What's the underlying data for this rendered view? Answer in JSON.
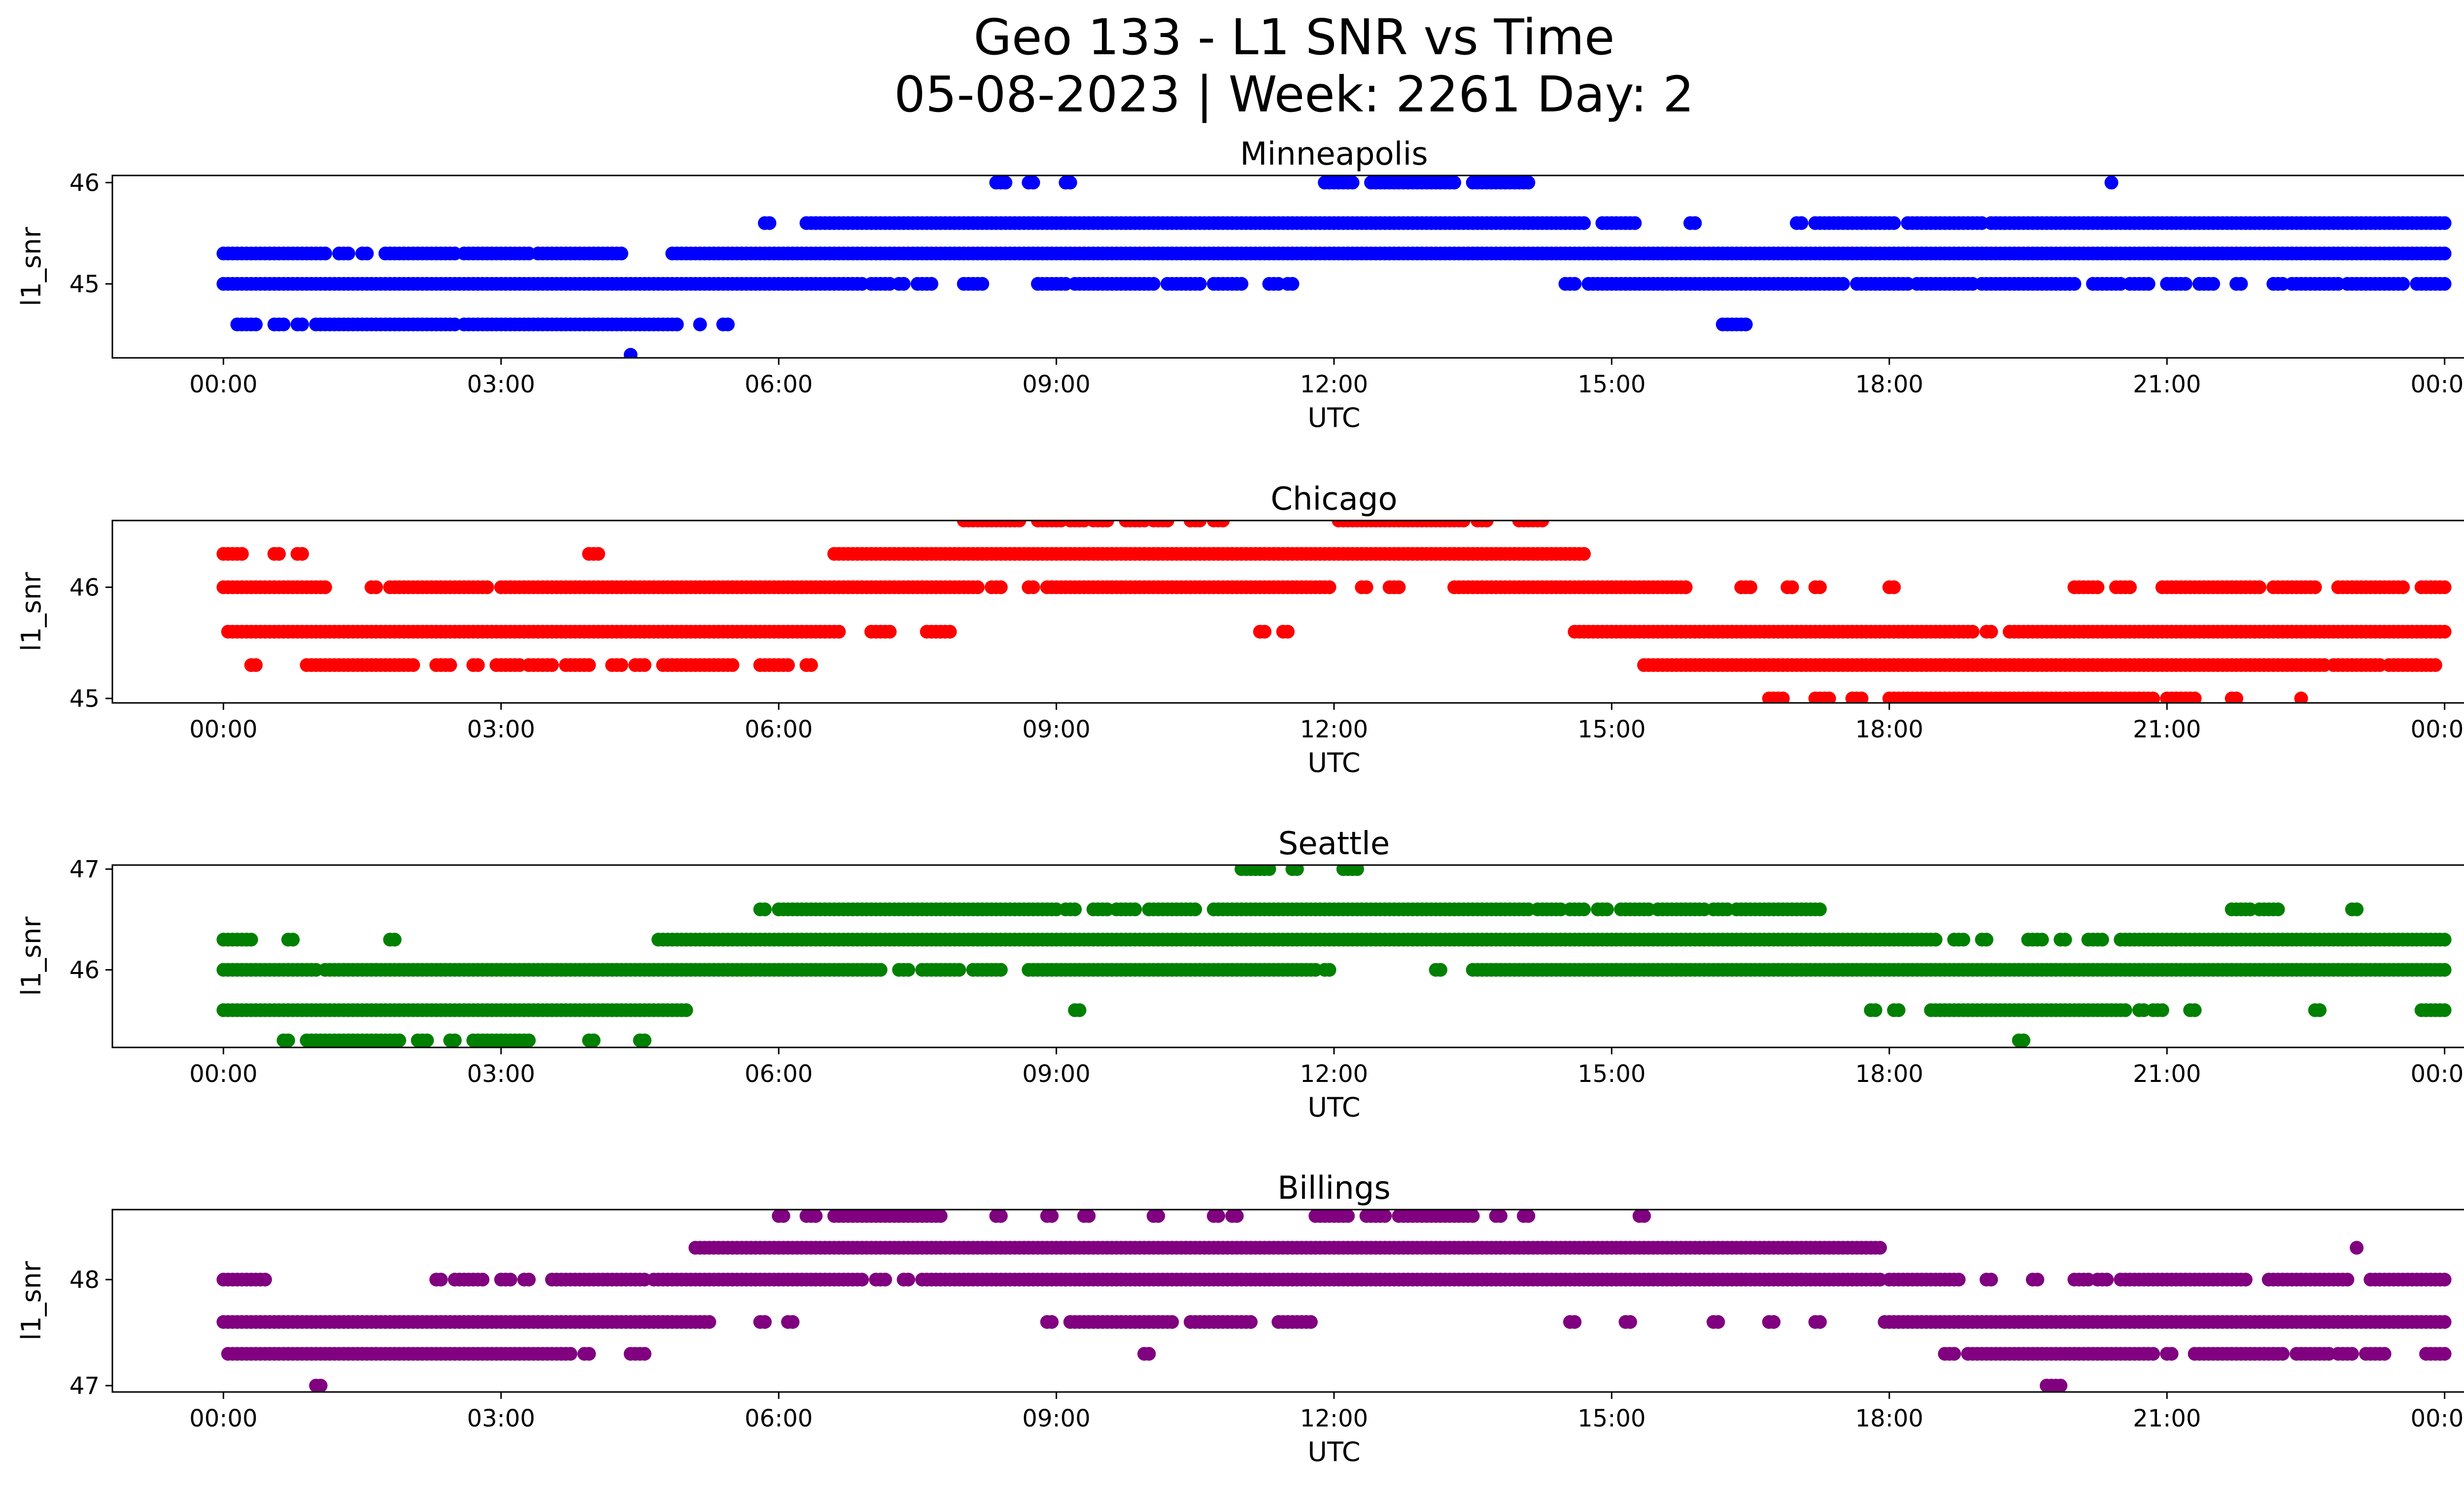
{
  "title_line1": "Geo 133 - L1 SNR vs Time",
  "title_line2": "05-08-2023 | Week: 2261 Day: 2",
  "chart_data": [
    {
      "type": "scatter",
      "title": "Minneapolis",
      "xlabel": "UTC",
      "ylabel": "l1_snr",
      "color": "#0000ff",
      "xlim_hours": [
        -1.2,
        25.2
      ],
      "ylim": [
        44.27,
        46.07
      ],
      "xticks": [
        "00:00",
        "03:00",
        "06:00",
        "09:00",
        "12:00",
        "15:00",
        "18:00",
        "21:00",
        "00:00"
      ],
      "yticks": [
        45,
        46
      ],
      "levels": [
        45.0,
        45.6,
        46.0,
        45.3,
        44.6,
        44.3
      ],
      "segments": [
        [
          46.0,
          8.35,
          8.45
        ],
        [
          46.0,
          8.7,
          8.75
        ],
        [
          46.0,
          9.1,
          9.15
        ],
        [
          46.0,
          11.9,
          12.2
        ],
        [
          46.0,
          12.4,
          13.3
        ],
        [
          46.0,
          13.5,
          14.1
        ],
        [
          46.0,
          20.4,
          20.4
        ],
        [
          45.6,
          5.85,
          5.9
        ],
        [
          45.6,
          6.3,
          14.7
        ],
        [
          45.6,
          14.9,
          15.25
        ],
        [
          45.6,
          15.85,
          15.9
        ],
        [
          45.6,
          17.0,
          17.05
        ],
        [
          45.6,
          17.2,
          18.05
        ],
        [
          45.6,
          18.2,
          19.0
        ],
        [
          45.6,
          19.1,
          24.0
        ],
        [
          45.3,
          0.0,
          0.55
        ],
        [
          45.3,
          0.6,
          0.8
        ],
        [
          45.3,
          0.85,
          0.95
        ],
        [
          45.3,
          1.0,
          1.1
        ],
        [
          45.3,
          1.25,
          1.35
        ],
        [
          45.3,
          1.5,
          1.55
        ],
        [
          45.3,
          1.75,
          2.5
        ],
        [
          45.3,
          2.6,
          3.3
        ],
        [
          45.3,
          3.4,
          4.3
        ],
        [
          45.3,
          4.85,
          24.0
        ],
        [
          45.0,
          0.0,
          6.9
        ],
        [
          45.0,
          7.0,
          7.2
        ],
        [
          45.0,
          7.3,
          7.35
        ],
        [
          45.0,
          7.5,
          7.65
        ],
        [
          45.0,
          8.0,
          8.2
        ],
        [
          45.0,
          8.8,
          9.1
        ],
        [
          45.0,
          9.2,
          9.5
        ],
        [
          45.0,
          9.55,
          10.05
        ],
        [
          45.0,
          10.2,
          10.55
        ],
        [
          45.0,
          10.7,
          11.0
        ],
        [
          45.0,
          11.3,
          11.4
        ],
        [
          45.0,
          11.5,
          11.55
        ],
        [
          45.0,
          14.5,
          14.6
        ],
        [
          45.0,
          14.75,
          17.5
        ],
        [
          45.0,
          17.65,
          18.2
        ],
        [
          45.0,
          18.3,
          18.9
        ],
        [
          45.0,
          19.0,
          19.5
        ],
        [
          45.0,
          19.55,
          20.0
        ],
        [
          45.0,
          20.2,
          20.5
        ],
        [
          45.0,
          20.6,
          20.8
        ],
        [
          45.0,
          21.0,
          21.2
        ],
        [
          45.0,
          21.35,
          21.5
        ],
        [
          45.0,
          21.75,
          21.8
        ],
        [
          45.0,
          22.15,
          22.25
        ],
        [
          45.0,
          22.35,
          22.85
        ],
        [
          45.0,
          22.95,
          23.55
        ],
        [
          45.0,
          23.7,
          24.0
        ],
        [
          44.6,
          0.15,
          0.35
        ],
        [
          44.6,
          0.55,
          0.65
        ],
        [
          44.6,
          0.8,
          0.85
        ],
        [
          44.6,
          1.0,
          2.5
        ],
        [
          44.6,
          2.6,
          4.9
        ],
        [
          44.6,
          5.15,
          5.15
        ],
        [
          44.6,
          5.4,
          5.45
        ],
        [
          44.6,
          16.2,
          16.45
        ],
        [
          44.3,
          4.4,
          4.4
        ]
      ]
    },
    {
      "type": "scatter",
      "title": "Chicago",
      "xlabel": "UTC",
      "ylabel": "l1_snr",
      "color": "#ff0000",
      "xlim_hours": [
        -1.2,
        25.2
      ],
      "ylim": [
        44.96,
        46.6
      ],
      "xticks": [
        "00:00",
        "03:00",
        "06:00",
        "09:00",
        "12:00",
        "15:00",
        "18:00",
        "21:00",
        "00:00"
      ],
      "yticks": [
        45,
        46
      ],
      "segments": [
        [
          46.6,
          8.0,
          8.3
        ],
        [
          46.6,
          8.35,
          8.6
        ],
        [
          46.6,
          8.8,
          9.05
        ],
        [
          46.6,
          9.15,
          9.3
        ],
        [
          46.6,
          9.4,
          9.55
        ],
        [
          46.6,
          9.75,
          9.95
        ],
        [
          46.6,
          10.05,
          10.2
        ],
        [
          46.6,
          10.45,
          10.55
        ],
        [
          46.6,
          10.7,
          10.8
        ],
        [
          46.6,
          12.05,
          13.4
        ],
        [
          46.6,
          13.55,
          13.65
        ],
        [
          46.6,
          14.0,
          14.25
        ],
        [
          46.3,
          0.0,
          0.2
        ],
        [
          46.3,
          0.55,
          0.6
        ],
        [
          46.3,
          0.8,
          0.85
        ],
        [
          46.3,
          3.95,
          4.05
        ],
        [
          46.3,
          6.6,
          14.7
        ],
        [
          46.0,
          0.0,
          1.1
        ],
        [
          46.0,
          1.6,
          1.65
        ],
        [
          46.0,
          1.8,
          2.85
        ],
        [
          46.0,
          3.0,
          8.15
        ],
        [
          46.0,
          8.3,
          8.4
        ],
        [
          46.0,
          8.7,
          8.75
        ],
        [
          46.0,
          8.9,
          11.95
        ],
        [
          46.0,
          12.3,
          12.35
        ],
        [
          46.0,
          12.6,
          12.7
        ],
        [
          46.0,
          13.3,
          15.8
        ],
        [
          46.0,
          16.4,
          16.5
        ],
        [
          46.0,
          16.9,
          16.95
        ],
        [
          46.0,
          17.2,
          17.25
        ],
        [
          46.0,
          18.0,
          18.05
        ],
        [
          46.0,
          20.0,
          20.25
        ],
        [
          46.0,
          20.45,
          20.6
        ],
        [
          46.0,
          20.95,
          21.55
        ],
        [
          46.0,
          21.6,
          22.0
        ],
        [
          46.0,
          22.15,
          22.6
        ],
        [
          46.0,
          22.85,
          23.55
        ],
        [
          46.0,
          23.75,
          24.0
        ],
        [
          45.6,
          0.05,
          6.65
        ],
        [
          45.6,
          7.0,
          7.2
        ],
        [
          45.6,
          7.6,
          7.85
        ],
        [
          45.6,
          11.2,
          11.25
        ],
        [
          45.6,
          11.45,
          11.5
        ],
        [
          45.6,
          14.6,
          18.9
        ],
        [
          45.6,
          19.05,
          19.1
        ],
        [
          45.6,
          19.3,
          24.0
        ],
        [
          45.3,
          0.3,
          0.35
        ],
        [
          45.3,
          0.9,
          2.05
        ],
        [
          45.3,
          2.3,
          2.45
        ],
        [
          45.3,
          2.7,
          2.75
        ],
        [
          45.3,
          2.95,
          3.2
        ],
        [
          45.3,
          3.3,
          3.55
        ],
        [
          45.3,
          3.7,
          3.75
        ],
        [
          45.3,
          3.8,
          3.95
        ],
        [
          45.3,
          4.2,
          4.3
        ],
        [
          45.3,
          4.45,
          4.55
        ],
        [
          45.3,
          4.75,
          5.15
        ],
        [
          45.3,
          5.2,
          5.5
        ],
        [
          45.3,
          5.8,
          6.1
        ],
        [
          45.3,
          6.3,
          6.35
        ],
        [
          45.3,
          15.35,
          22.7
        ],
        [
          45.3,
          22.8,
          23.3
        ],
        [
          45.3,
          23.4,
          23.9
        ],
        [
          45.0,
          16.7,
          16.85
        ],
        [
          45.0,
          17.2,
          17.35
        ],
        [
          45.0,
          17.6,
          17.7
        ],
        [
          45.0,
          18.0,
          20.85
        ],
        [
          45.0,
          21.0,
          21.3
        ],
        [
          45.0,
          21.7,
          21.75
        ],
        [
          45.0,
          22.45,
          22.45
        ]
      ]
    },
    {
      "type": "scatter",
      "title": "Seattle",
      "xlabel": "UTC",
      "ylabel": "l1_snr",
      "color": "#008000",
      "xlim_hours": [
        -1.2,
        25.2
      ],
      "ylim": [
        45.23,
        47.04
      ],
      "xticks": [
        "00:00",
        "03:00",
        "06:00",
        "09:00",
        "12:00",
        "15:00",
        "18:00",
        "21:00",
        "00:00"
      ],
      "yticks": [
        46,
        47
      ],
      "segments": [
        [
          47.0,
          11.0,
          11.3
        ],
        [
          47.0,
          11.55,
          11.6
        ],
        [
          47.0,
          12.1,
          12.25
        ],
        [
          46.6,
          5.8,
          5.85
        ],
        [
          46.6,
          6.0,
          9.0
        ],
        [
          46.6,
          9.1,
          9.2
        ],
        [
          46.6,
          9.4,
          9.55
        ],
        [
          46.6,
          9.65,
          9.85
        ],
        [
          46.6,
          10.0,
          10.5
        ],
        [
          46.6,
          10.7,
          14.1
        ],
        [
          46.6,
          14.2,
          14.45
        ],
        [
          46.6,
          14.55,
          14.7
        ],
        [
          46.6,
          14.85,
          14.95
        ],
        [
          46.6,
          15.1,
          15.4
        ],
        [
          46.6,
          15.5,
          16.0
        ],
        [
          46.6,
          16.1,
          16.25
        ],
        [
          46.6,
          16.35,
          16.95
        ],
        [
          46.6,
          17.0,
          17.25
        ],
        [
          46.6,
          21.7,
          21.9
        ],
        [
          46.6,
          22.0,
          22.2
        ],
        [
          46.6,
          23.0,
          23.05
        ],
        [
          46.3,
          0.0,
          0.3
        ],
        [
          46.3,
          0.7,
          0.75
        ],
        [
          46.3,
          1.8,
          1.85
        ],
        [
          46.3,
          4.7,
          18.5
        ],
        [
          46.3,
          18.7,
          18.8
        ],
        [
          46.3,
          19.0,
          19.05
        ],
        [
          46.3,
          19.5,
          19.65
        ],
        [
          46.3,
          19.85,
          19.9
        ],
        [
          46.3,
          20.15,
          20.3
        ],
        [
          46.3,
          20.5,
          24.0
        ],
        [
          46.0,
          0.0,
          1.0
        ],
        [
          46.0,
          1.1,
          7.1
        ],
        [
          46.0,
          7.3,
          7.4
        ],
        [
          46.0,
          7.55,
          7.95
        ],
        [
          46.0,
          8.1,
          8.4
        ],
        [
          46.0,
          8.7,
          11.8
        ],
        [
          46.0,
          11.9,
          11.95
        ],
        [
          46.0,
          13.1,
          13.15
        ],
        [
          46.0,
          13.5,
          14.8
        ],
        [
          46.0,
          14.85,
          24.0
        ],
        [
          45.6,
          0.0,
          5.0
        ],
        [
          45.6,
          9.2,
          9.25
        ],
        [
          45.6,
          17.8,
          17.85
        ],
        [
          45.6,
          18.05,
          18.1
        ],
        [
          45.6,
          18.45,
          20.55
        ],
        [
          45.6,
          20.7,
          20.75
        ],
        [
          45.6,
          20.85,
          20.95
        ],
        [
          45.6,
          21.25,
          21.3
        ],
        [
          45.6,
          22.6,
          22.65
        ],
        [
          45.6,
          23.75,
          24.0
        ],
        [
          45.3,
          0.65,
          0.7
        ],
        [
          45.3,
          0.9,
          1.9
        ],
        [
          45.3,
          2.1,
          2.2
        ],
        [
          45.3,
          2.45,
          2.5
        ],
        [
          45.3,
          2.7,
          2.85
        ],
        [
          45.3,
          2.9,
          3.3
        ],
        [
          45.3,
          3.95,
          4.0
        ],
        [
          45.3,
          4.5,
          4.55
        ],
        [
          45.3,
          19.4,
          19.45
        ]
      ]
    },
    {
      "type": "scatter",
      "title": "Billings",
      "xlabel": "UTC",
      "ylabel": "l1_snr",
      "color": "#800080",
      "xlim_hours": [
        -1.2,
        25.2
      ],
      "ylim": [
        46.94,
        48.66
      ],
      "xticks": [
        "00:00",
        "03:00",
        "06:00",
        "09:00",
        "12:00",
        "15:00",
        "18:00",
        "21:00",
        "00:00"
      ],
      "yticks": [
        47,
        48
      ],
      "segments": [
        [
          48.6,
          6.0,
          6.05
        ],
        [
          48.6,
          6.3,
          6.4
        ],
        [
          48.6,
          6.6,
          7.75
        ],
        [
          48.6,
          8.35,
          8.4
        ],
        [
          48.6,
          8.9,
          8.95
        ],
        [
          48.6,
          9.3,
          9.35
        ],
        [
          48.6,
          10.05,
          10.1
        ],
        [
          48.6,
          10.7,
          10.75
        ],
        [
          48.6,
          10.9,
          10.95
        ],
        [
          48.6,
          11.8,
          12.15
        ],
        [
          48.6,
          12.35,
          12.55
        ],
        [
          48.6,
          12.7,
          13.5
        ],
        [
          48.6,
          13.75,
          13.8
        ],
        [
          48.6,
          14.05,
          14.1
        ],
        [
          48.6,
          15.3,
          15.35
        ],
        [
          48.3,
          5.1,
          17.9
        ],
        [
          48.3,
          23.05,
          23.05
        ],
        [
          48.0,
          0.0,
          0.45
        ],
        [
          48.0,
          2.3,
          2.35
        ],
        [
          48.0,
          2.5,
          2.8
        ],
        [
          48.0,
          3.0,
          3.1
        ],
        [
          48.0,
          3.25,
          3.3
        ],
        [
          48.0,
          3.55,
          4.55
        ],
        [
          48.0,
          4.65,
          6.9
        ],
        [
          48.0,
          7.05,
          7.15
        ],
        [
          48.0,
          7.35,
          7.4
        ],
        [
          48.0,
          7.55,
          17.9
        ],
        [
          48.0,
          18.0,
          18.75
        ],
        [
          48.0,
          19.05,
          19.1
        ],
        [
          48.0,
          19.55,
          19.6
        ],
        [
          48.0,
          20.0,
          20.15
        ],
        [
          48.0,
          20.25,
          20.35
        ],
        [
          48.0,
          20.5,
          21.85
        ],
        [
          48.0,
          22.1,
          22.95
        ],
        [
          48.0,
          23.2,
          24.0
        ],
        [
          47.6,
          0.0,
          5.25
        ],
        [
          47.6,
          5.8,
          5.85
        ],
        [
          47.6,
          6.1,
          6.15
        ],
        [
          47.6,
          8.9,
          8.95
        ],
        [
          47.6,
          9.15,
          10.25
        ],
        [
          47.6,
          10.45,
          11.1
        ],
        [
          47.6,
          11.4,
          11.75
        ],
        [
          47.6,
          14.55,
          14.6
        ],
        [
          47.6,
          15.15,
          15.2
        ],
        [
          47.6,
          16.1,
          16.15
        ],
        [
          47.6,
          16.7,
          16.75
        ],
        [
          47.6,
          17.2,
          17.25
        ],
        [
          47.6,
          17.95,
          24.0
        ],
        [
          47.3,
          0.05,
          3.75
        ],
        [
          47.3,
          3.9,
          3.95
        ],
        [
          47.3,
          4.4,
          4.55
        ],
        [
          47.3,
          9.95,
          10.0
        ],
        [
          47.3,
          18.6,
          18.7
        ],
        [
          47.3,
          18.85,
          20.85
        ],
        [
          47.3,
          21.0,
          21.05
        ],
        [
          47.3,
          21.3,
          22.25
        ],
        [
          47.3,
          22.4,
          22.75
        ],
        [
          47.3,
          22.85,
          23.0
        ],
        [
          47.3,
          23.15,
          23.35
        ],
        [
          47.3,
          23.8,
          24.0
        ],
        [
          47.0,
          1.0,
          1.05
        ],
        [
          47.0,
          19.7,
          19.85
        ]
      ]
    }
  ]
}
